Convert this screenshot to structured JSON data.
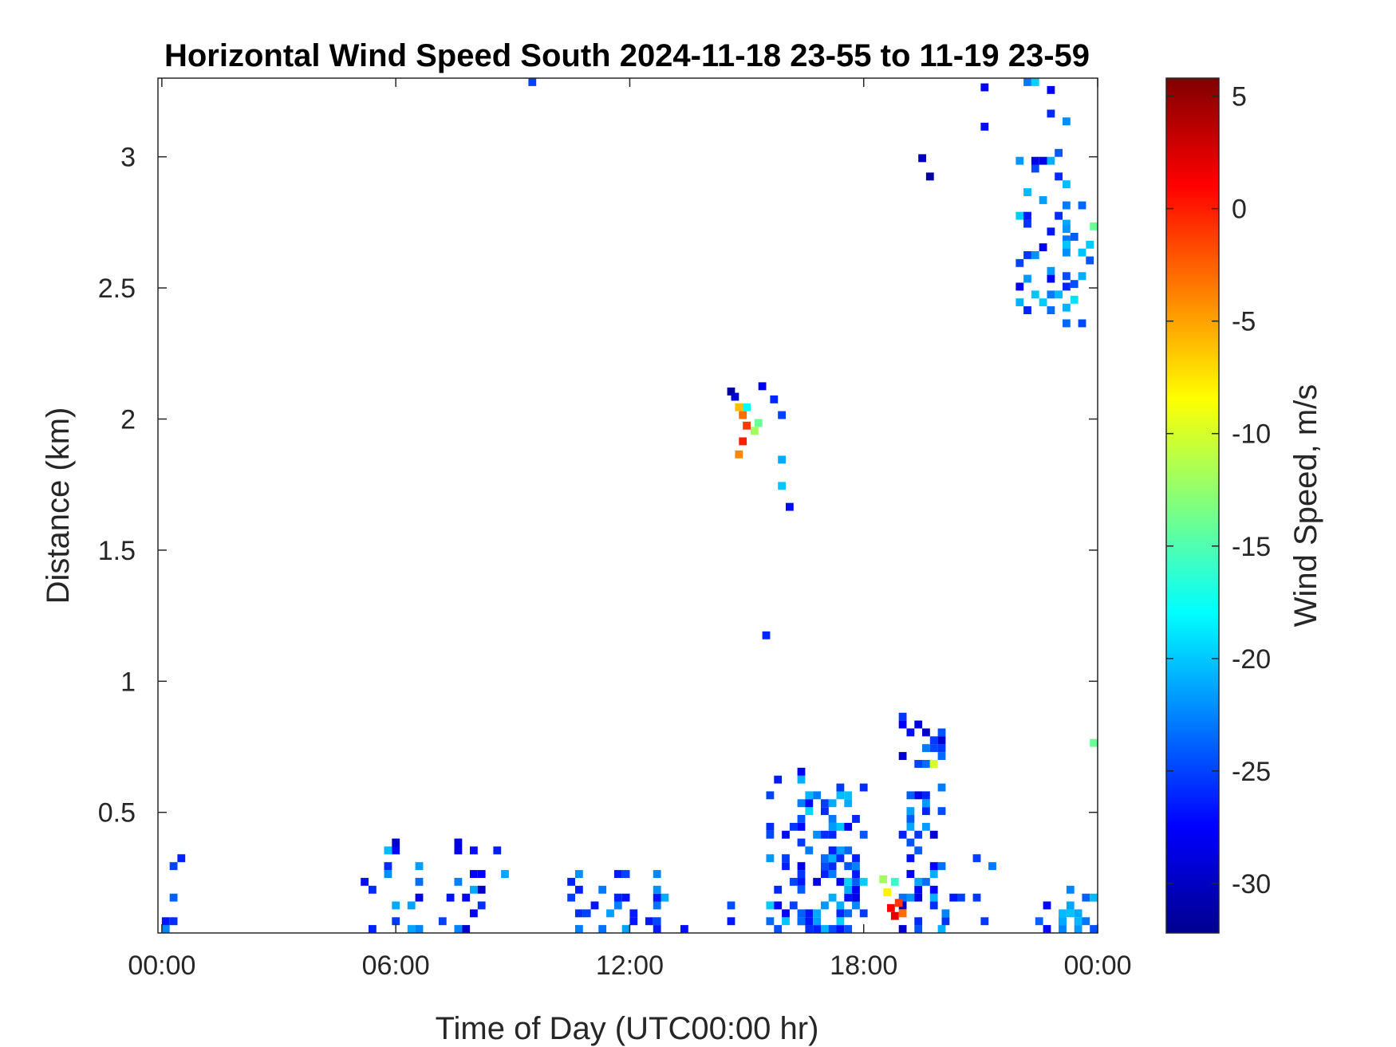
{
  "chart_data": {
    "type": "heatmap",
    "title": "Horizontal Wind Speed South 2024-11-18 23-55 to 11-19 23-59",
    "xlabel": "Time of Day (UTC00:00 hr)",
    "ylabel": "Distance (km)",
    "x_unit": "hours",
    "xlim": [
      -0.1,
      24.0
    ],
    "ylim": [
      0.04,
      3.3
    ],
    "x_ticks": [
      0,
      6,
      12,
      18,
      24
    ],
    "x_tick_labels": [
      "00:00",
      "06:00",
      "12:00",
      "18:00",
      "00:00"
    ],
    "y_ticks": [
      0.5,
      1,
      1.5,
      2,
      2.5,
      3
    ],
    "y_tick_labels": [
      "0.5",
      "1",
      "1.5",
      "2",
      "2.5",
      "3"
    ],
    "colorbar": {
      "label": "Wind Speed, m/s",
      "colormap": "jet",
      "clim": [
        -32.2,
        5.8
      ],
      "ticks": [
        5,
        0,
        -5,
        -10,
        -15,
        -20,
        -25,
        -30
      ],
      "tick_labels": [
        "5",
        "0",
        "-5",
        "-10",
        "-15",
        "-20",
        "-25",
        "-30"
      ]
    },
    "grid": false,
    "cell_size": {
      "dt_hours": 0.2,
      "dr_km": 0.03
    },
    "clusters": [
      {
        "t": [
          0.0,
          0.5
        ],
        "r": [
          0.04,
          0.33
        ],
        "v": -25,
        "spread": 2,
        "density": 0.35
      },
      {
        "t": [
          5.1,
          9.0
        ],
        "r": [
          0.04,
          0.38
        ],
        "v": -25,
        "spread": 3,
        "density": 0.22
      },
      {
        "t": [
          10.4,
          12.8
        ],
        "r": [
          0.04,
          0.26
        ],
        "v": -24,
        "spread": 2,
        "density": 0.3
      },
      {
        "t": [
          13.3,
          15.3
        ],
        "r": [
          0.04,
          0.18
        ],
        "v": -25,
        "spread": 2,
        "density": 0.18
      },
      {
        "t": [
          16.3,
          17.9
        ],
        "r": [
          0.04,
          0.62
        ],
        "v": -24,
        "spread": 3,
        "density": 0.6
      },
      {
        "t": [
          15.5,
          16.3
        ],
        "r": [
          0.04,
          0.66
        ],
        "v": -24,
        "spread": 3,
        "density": 0.22
      },
      {
        "t": [
          18.9,
          20.0
        ],
        "r": [
          0.04,
          0.87
        ],
        "v": -25,
        "spread": 3,
        "density": 0.4
      },
      {
        "t": [
          20.0,
          21.2
        ],
        "r": [
          0.04,
          0.45
        ],
        "v": -25,
        "spread": 2,
        "density": 0.15
      },
      {
        "t": [
          21.8,
          23.0
        ],
        "r": [
          0.04,
          0.15
        ],
        "v": -25,
        "spread": 2,
        "density": 0.18
      },
      {
        "t": [
          23.0,
          24.0
        ],
        "r": [
          0.04,
          0.2
        ],
        "v": -23,
        "spread": 2,
        "density": 0.6
      },
      {
        "t": [
          21.9,
          23.1
        ],
        "r": [
          2.4,
          3.3
        ],
        "v": -24,
        "spread": 3,
        "density": 0.25
      },
      {
        "t": [
          23.1,
          23.9
        ],
        "r": [
          2.35,
          2.85
        ],
        "v": -22,
        "spread": 3,
        "density": 0.38
      }
    ],
    "points": [
      {
        "t": 14.8,
        "r": 1.9,
        "v": 0
      },
      {
        "t": 14.9,
        "r": 1.96,
        "v": -1
      },
      {
        "t": 14.8,
        "r": 2.0,
        "v": -3
      },
      {
        "t": 14.7,
        "r": 2.03,
        "v": -6
      },
      {
        "t": 14.9,
        "r": 2.03,
        "v": -18
      },
      {
        "t": 14.5,
        "r": 2.09,
        "v": -31
      },
      {
        "t": 14.6,
        "r": 2.07,
        "v": -29
      },
      {
        "t": 15.1,
        "r": 1.94,
        "v": -12
      },
      {
        "t": 15.2,
        "r": 1.97,
        "v": -14
      },
      {
        "t": 14.7,
        "r": 1.85,
        "v": -4
      },
      {
        "t": 15.3,
        "r": 2.11,
        "v": -28
      },
      {
        "t": 15.6,
        "r": 2.06,
        "v": -26
      },
      {
        "t": 15.8,
        "r": 2.0,
        "v": -25
      },
      {
        "t": 15.8,
        "r": 1.83,
        "v": -21
      },
      {
        "t": 15.8,
        "r": 1.73,
        "v": -20
      },
      {
        "t": 16.0,
        "r": 1.65,
        "v": -27
      },
      {
        "t": 15.4,
        "r": 1.16,
        "v": -26
      },
      {
        "t": 18.6,
        "r": 0.12,
        "v": 1
      },
      {
        "t": 18.8,
        "r": 0.14,
        "v": -1
      },
      {
        "t": 18.7,
        "r": 0.09,
        "v": 2
      },
      {
        "t": 18.5,
        "r": 0.18,
        "v": -8
      },
      {
        "t": 18.9,
        "r": 0.1,
        "v": -3
      },
      {
        "t": 18.4,
        "r": 0.23,
        "v": -12
      },
      {
        "t": 18.7,
        "r": 0.22,
        "v": -16
      },
      {
        "t": 19.7,
        "r": 0.67,
        "v": -10
      },
      {
        "t": 23.8,
        "r": 0.75,
        "v": -14
      },
      {
        "t": 9.4,
        "r": 3.27,
        "v": -25
      },
      {
        "t": 19.4,
        "r": 2.98,
        "v": -30
      },
      {
        "t": 19.6,
        "r": 2.91,
        "v": -31
      },
      {
        "t": 21.0,
        "r": 3.25,
        "v": -28
      },
      {
        "t": 21.0,
        "r": 3.1,
        "v": -27
      },
      {
        "t": 22.7,
        "r": 3.15,
        "v": -26
      },
      {
        "t": 23.8,
        "r": 2.72,
        "v": -14
      }
    ]
  }
}
